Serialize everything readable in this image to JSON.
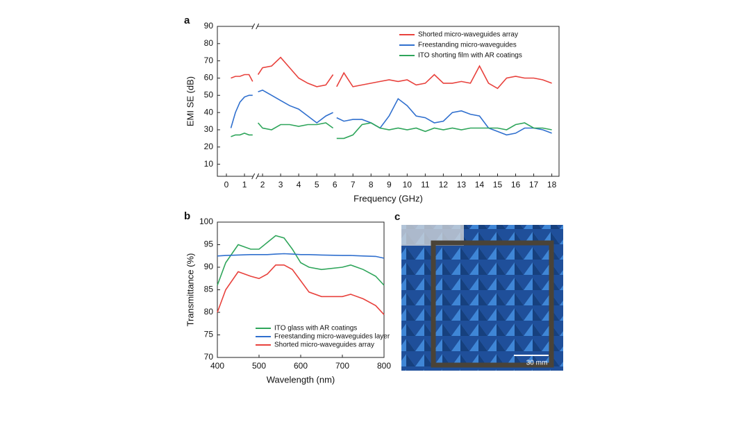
{
  "chart_data": [
    {
      "type": "line",
      "panel": "a",
      "xlabel": "Frequency (GHz)",
      "ylabel": "EMI SE (dB)",
      "x": [
        0.25,
        0.5,
        0.75,
        1.0,
        1.25,
        1.45,
        1.6,
        1.75,
        2.0,
        2.5,
        3.0,
        3.5,
        4.0,
        4.5,
        5.0,
        5.5,
        5.9,
        6.0,
        6.1,
        6.5,
        7.0,
        7.5,
        8.0,
        8.5,
        9.0,
        9.5,
        10.0,
        10.5,
        11.0,
        11.5,
        12.0,
        12.5,
        13.0,
        13.5,
        14.0,
        14.5,
        15.0,
        15.5,
        16.0,
        16.5,
        17.0,
        17.5,
        18.0
      ],
      "series": [
        {
          "name": "Shorted micro-waveguides array",
          "color": "#e8413c",
          "values": [
            60,
            61,
            61,
            62,
            62,
            58,
            null,
            62,
            66,
            67,
            72,
            66,
            60,
            57,
            55,
            56,
            62,
            null,
            55,
            63,
            55,
            56,
            57,
            58,
            59,
            58,
            59,
            56,
            57,
            62,
            57,
            57,
            58,
            57,
            67,
            57,
            54,
            60,
            61,
            60,
            60,
            59,
            57
          ]
        },
        {
          "name": "Freestanding micro-waveguides",
          "color": "#2f6fce",
          "values": [
            31,
            40,
            46,
            49,
            50,
            50,
            null,
            52,
            53,
            50,
            47,
            44,
            42,
            38,
            34,
            38,
            40,
            null,
            37,
            35,
            36,
            36,
            34,
            31,
            38,
            48,
            44,
            38,
            37,
            34,
            35,
            40,
            41,
            39,
            38,
            31,
            29,
            27,
            28,
            31,
            31,
            30,
            28
          ]
        },
        {
          "name": "ITO shorting film with AR coatings",
          "color": "#2ea55a",
          "values": [
            26,
            27,
            27,
            28,
            27,
            27,
            null,
            34,
            31,
            30,
            33,
            33,
            32,
            33,
            33,
            34,
            31,
            null,
            25,
            25,
            27,
            33,
            34,
            31,
            30,
            31,
            30,
            31,
            29,
            31,
            30,
            31,
            30,
            31,
            31,
            31,
            31,
            30,
            33,
            34,
            31,
            31,
            30
          ]
        }
      ],
      "xlim": [
        -0.5,
        18.4
      ],
      "xticks": [
        0,
        1,
        2,
        3,
        4,
        5,
        6,
        7,
        8,
        9,
        10,
        11,
        12,
        13,
        14,
        15,
        16,
        17,
        18
      ],
      "ylim": [
        3,
        90
      ],
      "yticks": [
        10,
        20,
        30,
        40,
        50,
        60,
        70,
        80,
        90
      ],
      "legend": "top-right"
    },
    {
      "type": "line",
      "panel": "b",
      "xlabel": "Wavelength (nm)",
      "ylabel": "Transmittance (%)",
      "x": [
        400,
        420,
        450,
        480,
        500,
        520,
        540,
        560,
        580,
        600,
        620,
        650,
        700,
        720,
        750,
        780,
        800
      ],
      "series": [
        {
          "name": "ITO glass with AR coatings",
          "color": "#2ea55a",
          "values": [
            86,
            91,
            95,
            94,
            94,
            95.5,
            97,
            96.5,
            94,
            91,
            90,
            89.5,
            90,
            90.5,
            89.5,
            88,
            86
          ]
        },
        {
          "name": "Freestanding micro-waveguides layer",
          "color": "#2f6fce",
          "values": [
            92.5,
            92.6,
            92.7,
            92.8,
            92.8,
            92.8,
            92.9,
            93,
            92.9,
            92.8,
            92.8,
            92.7,
            92.6,
            92.6,
            92.5,
            92.4,
            92
          ]
        },
        {
          "name": "Shorted micro-waveguides array",
          "color": "#e8413c",
          "values": [
            80,
            85,
            89,
            88,
            87.5,
            88.5,
            90.5,
            90.5,
            89.5,
            87,
            84.5,
            83.5,
            83.5,
            84,
            83,
            81.5,
            79.5
          ]
        }
      ],
      "xlim": [
        400,
        800
      ],
      "xticks": [
        400,
        500,
        600,
        700,
        800
      ],
      "ylim": [
        70,
        100
      ],
      "yticks": [
        70,
        75,
        80,
        85,
        90,
        95,
        100
      ],
      "legend": "bottom-left"
    }
  ],
  "photo": {
    "panel": "c",
    "scale_label": "30 mm"
  }
}
